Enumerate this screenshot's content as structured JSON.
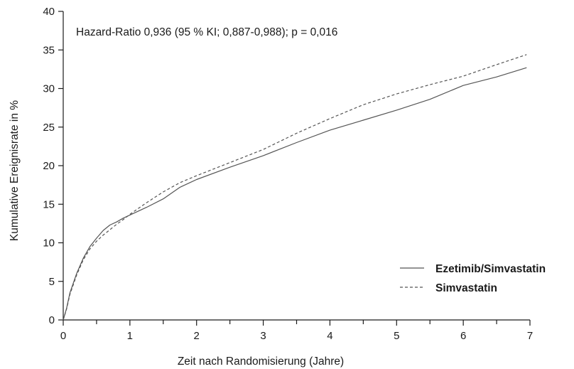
{
  "chart_data": {
    "type": "line",
    "title": "",
    "annotation": "Hazard-Ratio 0,936 (95 % KI; 0,887-0,988); p = 0,016",
    "xlabel": "Zeit nach Randomisierung (Jahre)",
    "ylabel": "Kumulative Ereignisrate in %",
    "xlim": [
      0,
      7
    ],
    "ylim": [
      0,
      40
    ],
    "x_ticks": [
      0,
      1,
      2,
      3,
      4,
      5,
      6,
      7
    ],
    "x_tick_labels": [
      "0",
      "1",
      "2",
      "3",
      "4",
      "5",
      "6",
      "7"
    ],
    "y_ticks": [
      0,
      5,
      10,
      15,
      20,
      25,
      30,
      35,
      40
    ],
    "y_tick_labels": [
      "0",
      "5",
      "10",
      "15",
      "20",
      "25",
      "30",
      "35",
      "40"
    ],
    "grid": false,
    "legend_position": "bottom-right",
    "series": [
      {
        "name": "Ezetimib/Simvastatin",
        "line_style": "solid",
        "color": "#555555",
        "x": [
          0,
          0.05,
          0.1,
          0.2,
          0.3,
          0.4,
          0.5,
          0.6,
          0.7,
          0.8,
          0.9,
          1.0,
          1.25,
          1.5,
          1.75,
          2.0,
          2.5,
          3.0,
          3.5,
          4.0,
          4.5,
          5.0,
          5.5,
          6.0,
          6.5,
          6.95
        ],
        "y": [
          0,
          1.5,
          3.5,
          6.0,
          8.0,
          9.5,
          10.6,
          11.6,
          12.3,
          12.7,
          13.2,
          13.6,
          14.6,
          15.7,
          17.2,
          18.2,
          19.8,
          21.3,
          23.0,
          24.6,
          25.9,
          27.2,
          28.6,
          30.4,
          31.5,
          32.7
        ]
      },
      {
        "name": "Simvastatin",
        "line_style": "dashed",
        "color": "#555555",
        "x": [
          0,
          0.05,
          0.1,
          0.2,
          0.3,
          0.4,
          0.5,
          0.6,
          0.7,
          0.8,
          0.9,
          1.0,
          1.25,
          1.5,
          1.75,
          2.0,
          2.5,
          3.0,
          3.5,
          4.0,
          4.5,
          5.0,
          5.5,
          6.0,
          6.5,
          6.95
        ],
        "y": [
          0,
          1.4,
          3.3,
          5.8,
          7.8,
          9.2,
          10.2,
          11.0,
          11.7,
          12.4,
          13.0,
          13.7,
          15.2,
          16.6,
          17.8,
          18.7,
          20.4,
          22.1,
          24.2,
          26.1,
          27.9,
          29.3,
          30.5,
          31.6,
          33.1,
          34.4
        ]
      }
    ]
  }
}
